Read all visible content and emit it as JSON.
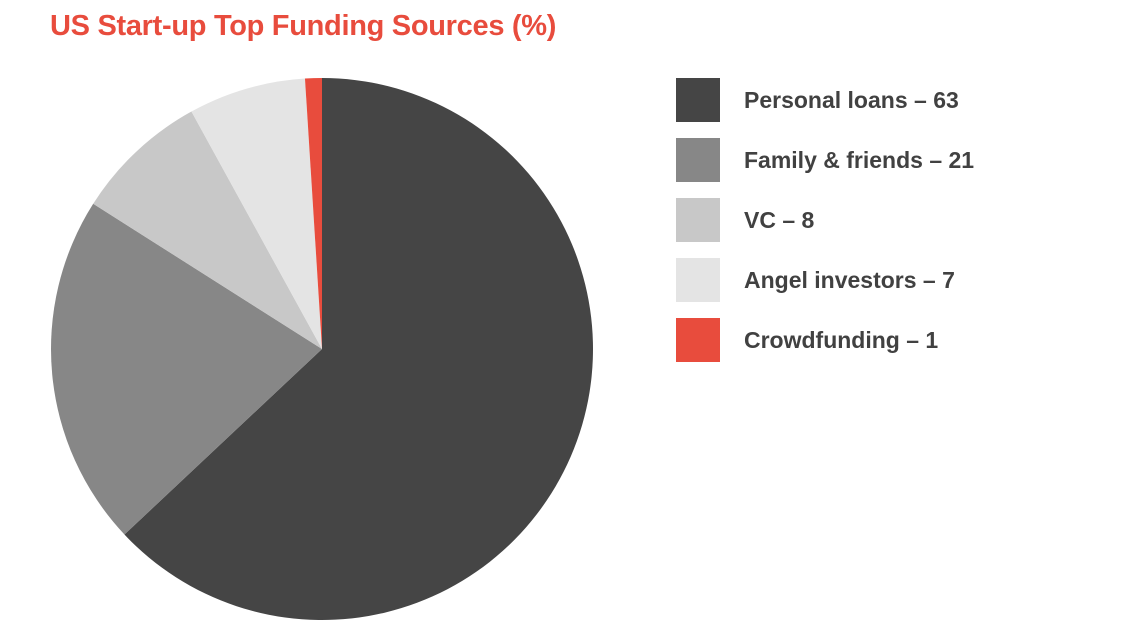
{
  "chart_data": {
    "type": "pie",
    "title": "US Start-up Top Funding Sources (%)",
    "slices": [
      {
        "label": "Personal loans – 63",
        "value": 63,
        "color": "#454545"
      },
      {
        "label": "Family & friends – 21",
        "value": 21,
        "color": "#878787"
      },
      {
        "label": "VC – 8",
        "value": 8,
        "color": "#c8c8c8"
      },
      {
        "label": "Angel investors – 7",
        "value": 7,
        "color": "#e4e4e4"
      },
      {
        "label": "Crowdfunding – 1",
        "value": 1,
        "color": "#e84c3d"
      }
    ],
    "start_angle": "12 o'clock",
    "direction": "clockwise",
    "legend_position": "right"
  }
}
